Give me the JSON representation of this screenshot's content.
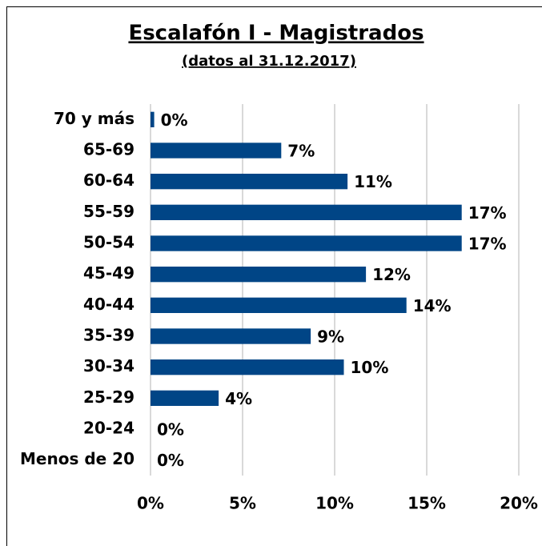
{
  "chart_data": {
    "type": "bar",
    "orientation": "horizontal",
    "title": "Escalafón I - Magistrados",
    "subtitle": "(datos al 31.12.2017)",
    "categories": [
      "70 y más",
      "65-69",
      "60-64",
      "55-59",
      "50-54",
      "45-49",
      "40-44",
      "35-39",
      "30-34",
      "25-29",
      "20-24",
      "Menos de 20"
    ],
    "values": [
      0.2,
      7.1,
      10.7,
      16.9,
      16.9,
      11.7,
      13.9,
      8.7,
      10.5,
      3.7,
      0,
      0
    ],
    "value_labels": [
      "0%",
      "7%",
      "11%",
      "17%",
      "17%",
      "12%",
      "14%",
      "9%",
      "10%",
      "4%",
      "0%",
      "0%"
    ],
    "color": "#004586",
    "xlim": [
      0,
      20
    ],
    "xticks": [
      {
        "value": 0,
        "label": "0%"
      },
      {
        "value": 5,
        "label": "5%"
      },
      {
        "value": 10,
        "label": "10%"
      },
      {
        "value": 15,
        "label": "15%"
      },
      {
        "value": 20,
        "label": "20%"
      }
    ],
    "grid": true
  }
}
